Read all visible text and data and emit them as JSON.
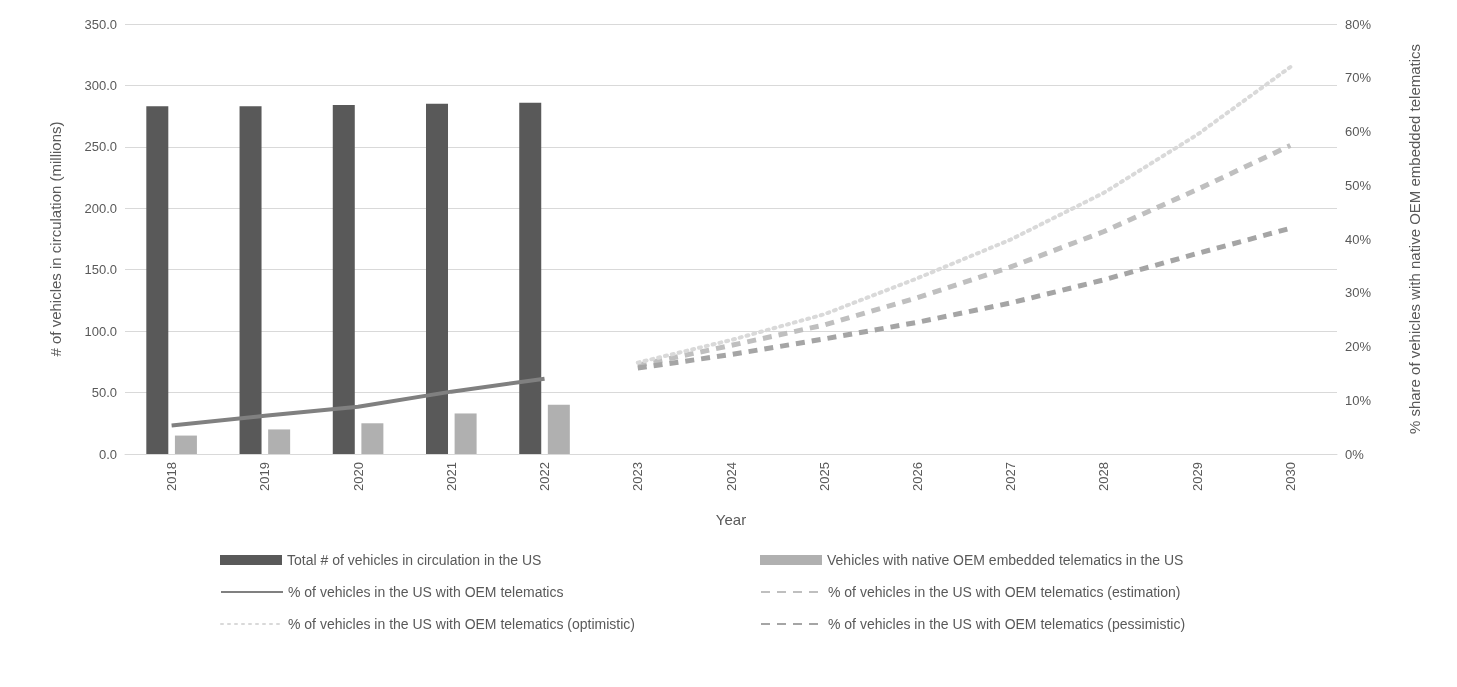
{
  "chart_data": {
    "type": "bar",
    "xlabel": "Year",
    "ylabel": "# of vehicles in circulation (millions)",
    "y2label": "% share of vehicles with native OEM embedded telematics",
    "categories": [
      "2018",
      "2019",
      "2020",
      "2021",
      "2022",
      "2023",
      "2024",
      "2025",
      "2026",
      "2027",
      "2028",
      "2029",
      "2030"
    ],
    "series": [
      {
        "name": "Total # of vehicles in circulation in the US",
        "color": "#595959",
        "values": [
          283,
          283,
          284,
          285,
          286,
          null,
          null,
          null,
          null,
          null,
          null,
          null,
          null
        ]
      },
      {
        "name": "Vehicles with native OEM embedded telematics in the US",
        "color": "#b0b0b0",
        "values": [
          15,
          20,
          25,
          33,
          40,
          null,
          null,
          null,
          null,
          null,
          null,
          null,
          null
        ]
      },
      {
        "name": "% of vehicles in the US with OEM telematics",
        "type": "line",
        "axis": "y2",
        "line_style": "solid",
        "color": "#808080",
        "values": [
          5.3,
          7.1,
          8.8,
          11.6,
          14.0,
          null,
          null,
          null,
          null,
          null,
          null,
          null,
          null
        ]
      },
      {
        "name": "% of vehicles in the US with OEM telematics (estimation)",
        "type": "line",
        "axis": "y2",
        "line_style": "dashed",
        "color": "#bfbfbf",
        "values": [
          null,
          null,
          null,
          null,
          null,
          16.5,
          20.2,
          24,
          29.1,
          34.8,
          41.4,
          49.2,
          57.4
        ]
      },
      {
        "name": "% of vehicles in the US with OEM telematics (optimistic)",
        "type": "line",
        "axis": "y2",
        "line_style": "dotted",
        "color": "#d9d9d9",
        "values": [
          null,
          null,
          null,
          null,
          null,
          17,
          21.2,
          26,
          32.7,
          39.9,
          48.6,
          59.4,
          72
        ]
      },
      {
        "name": "% of vehicles in the US with OEM telematics (pessimistic)",
        "type": "line",
        "axis": "y2",
        "line_style": "dashed",
        "color": "#a5a5a5",
        "values": [
          null,
          null,
          null,
          null,
          null,
          16,
          18.5,
          21.4,
          24.5,
          28.1,
          32.4,
          37.3,
          42
        ]
      }
    ],
    "ylim": [
      0,
      350
    ],
    "yticks": [
      {
        "value": 0,
        "label": "0.0"
      },
      {
        "value": 50,
        "label": "50.0"
      },
      {
        "value": 100,
        "label": "100.0"
      },
      {
        "value": 150,
        "label": "150.0"
      },
      {
        "value": 200,
        "label": "200.0"
      },
      {
        "value": 250,
        "label": "250.0"
      },
      {
        "value": 300,
        "label": "300.0"
      },
      {
        "value": 350,
        "label": "350.0"
      }
    ],
    "y2lim": [
      0,
      80
    ],
    "y2ticks": [
      {
        "value": 0,
        "label": "0%"
      },
      {
        "value": 10,
        "label": "10%"
      },
      {
        "value": 20,
        "label": "20%"
      },
      {
        "value": 30,
        "label": "30%"
      },
      {
        "value": 40,
        "label": "40%"
      },
      {
        "value": 50,
        "label": "50%"
      },
      {
        "value": 60,
        "label": "60%"
      },
      {
        "value": 70,
        "label": "70%"
      },
      {
        "value": 80,
        "label": "80%"
      }
    ],
    "grid": "y",
    "legend": "bottom",
    "marker": "none"
  }
}
